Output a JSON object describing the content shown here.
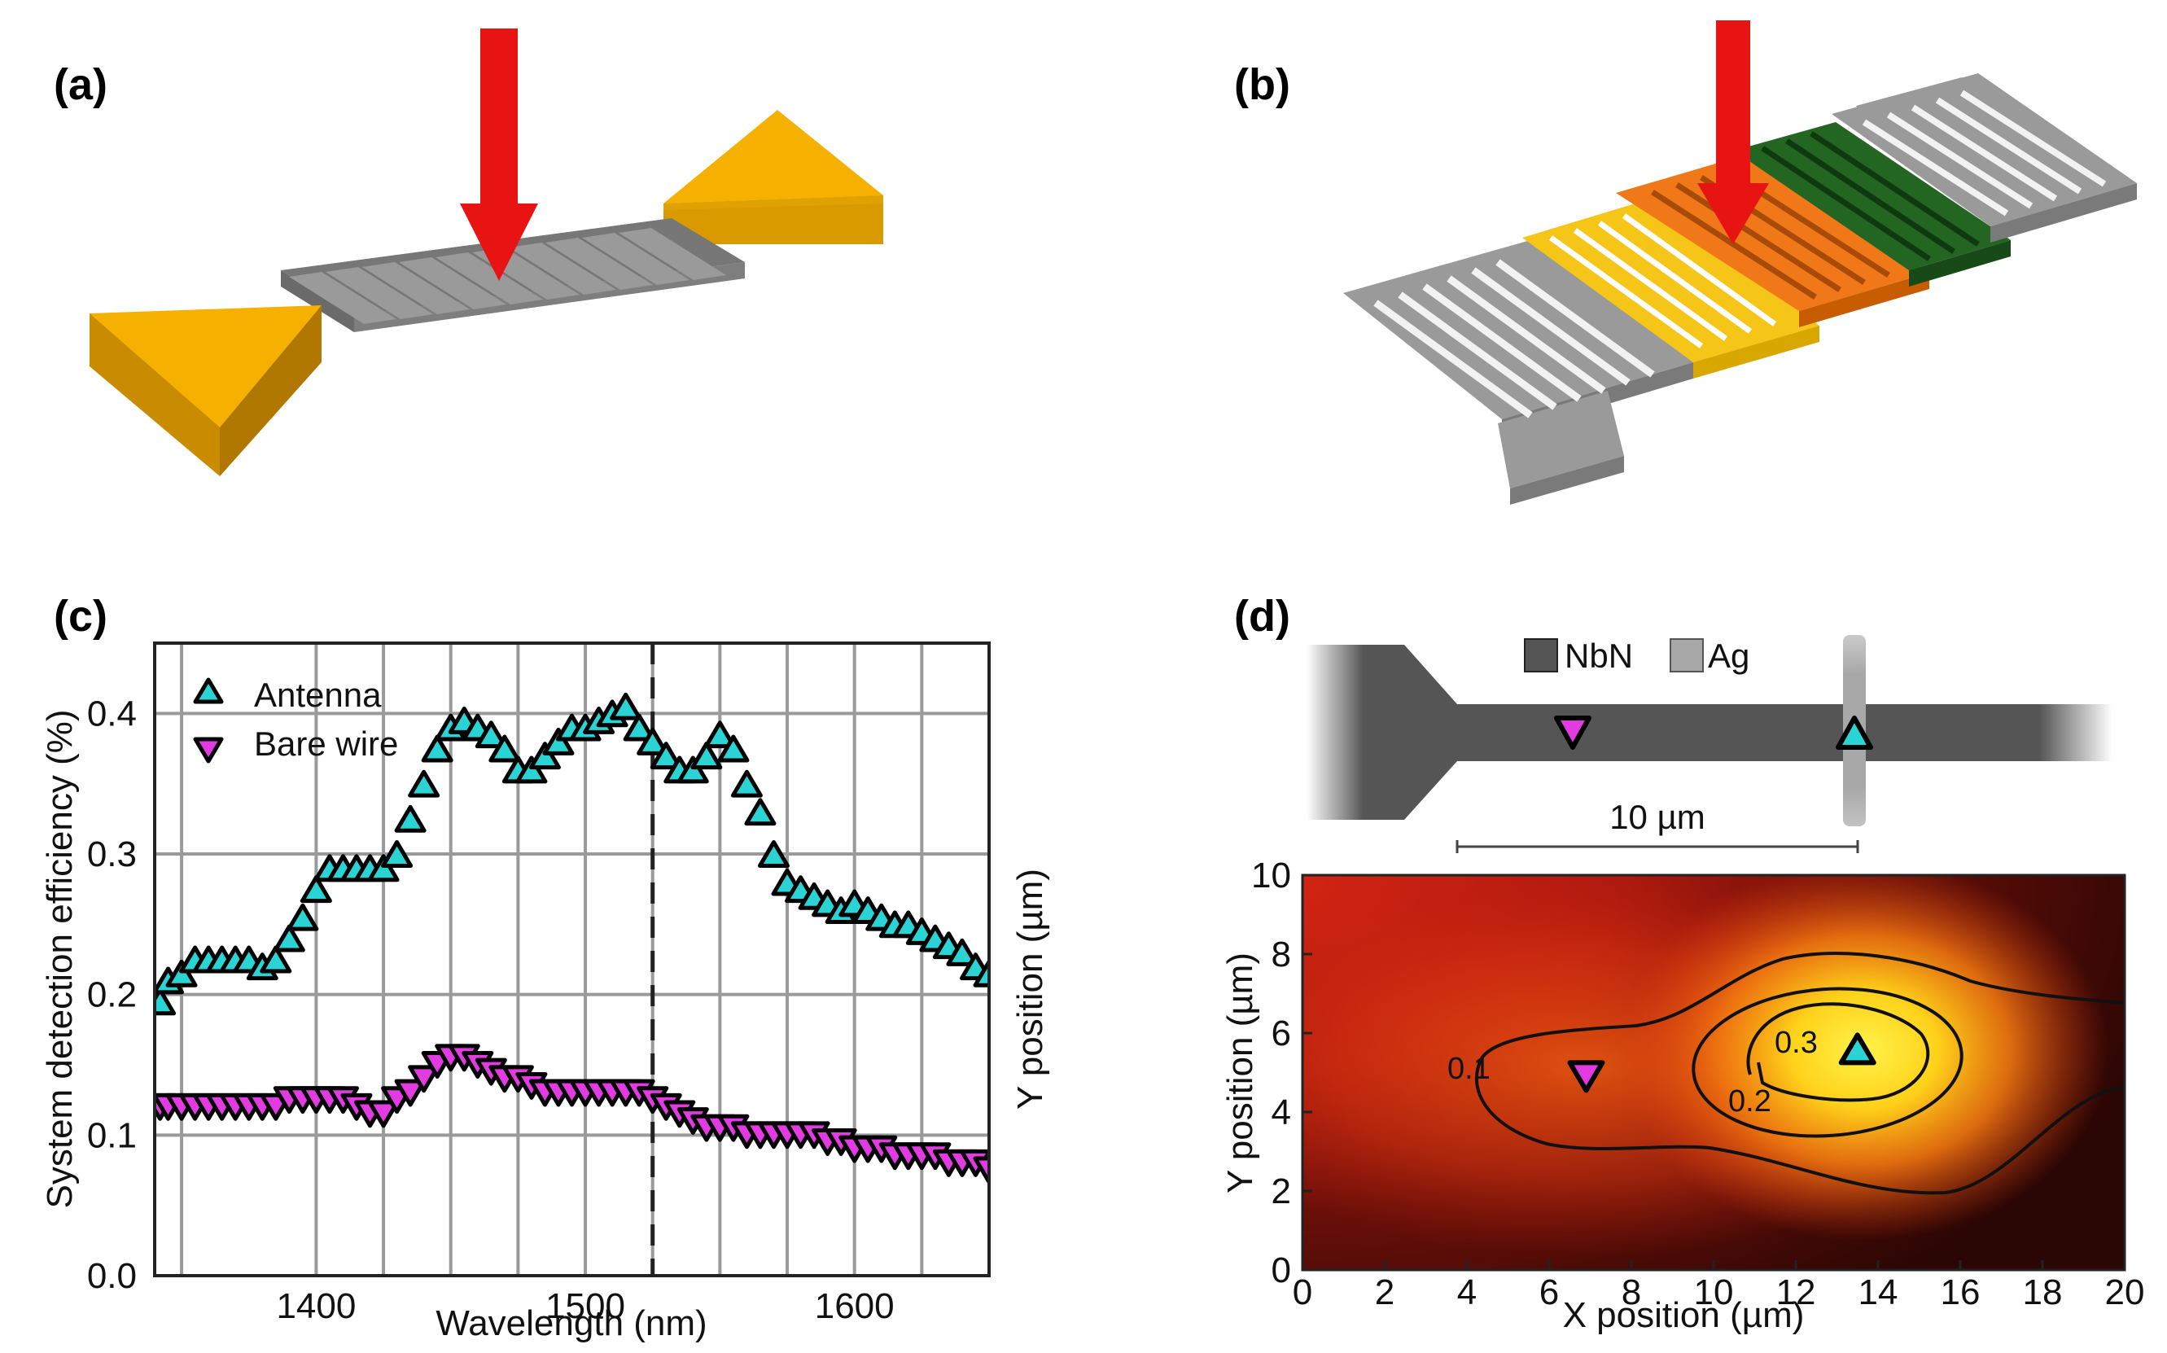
{
  "panels": {
    "a": "(a)",
    "b": "(b)",
    "c": "(c)",
    "d": "(d)"
  },
  "colors": {
    "arrow": "#e81313",
    "wire": "#8c8c8c",
    "gold": "#f5b000",
    "grid": "#9a9a9a",
    "antenna_marker": "#2ad4d4",
    "bare_marker": "#e23be2",
    "nbn": "#555555",
    "ag": "#a8a8a8"
  },
  "chart_data": [
    {
      "type": "scatter",
      "panel": "(c)",
      "xlabel": "Wavelength (nm)",
      "ylabel": "System detection efficiency (%)",
      "right_label": "Y position (µm)",
      "xlim": [
        1340,
        1650
      ],
      "ylim": [
        0.0,
        0.45
      ],
      "xticks": [
        1400,
        1500,
        1600
      ],
      "xtick_labels": [
        "1400",
        "1500",
        "1600"
      ],
      "yticks": [
        0.0,
        0.1,
        0.2,
        0.3,
        0.4
      ],
      "ytick_labels": [
        "0.0",
        "0.1",
        "0.2",
        "0.3",
        "0.4"
      ],
      "x_gridlines": [
        1350,
        1400,
        1425,
        1450,
        1475,
        1500,
        1525,
        1550,
        1575,
        1600,
        1625
      ],
      "y_gridlines": [
        0.1,
        0.2,
        0.3,
        0.4
      ],
      "dashed_line_x": 1525,
      "legend": [
        "Antenna",
        "Bare wire"
      ],
      "series": [
        {
          "name": "Antenna",
          "x": [
            1342,
            1345,
            1350,
            1355,
            1360,
            1365,
            1370,
            1375,
            1380,
            1385,
            1390,
            1395,
            1400,
            1405,
            1410,
            1415,
            1420,
            1425,
            1430,
            1435,
            1440,
            1445,
            1450,
            1455,
            1460,
            1465,
            1470,
            1475,
            1480,
            1485,
            1490,
            1495,
            1500,
            1505,
            1510,
            1515,
            1520,
            1525,
            1530,
            1535,
            1540,
            1545,
            1550,
            1555,
            1560,
            1565,
            1570,
            1575,
            1580,
            1585,
            1590,
            1595,
            1600,
            1605,
            1610,
            1615,
            1620,
            1625,
            1630,
            1635,
            1640,
            1645,
            1650
          ],
          "y": [
            0.195,
            0.21,
            0.215,
            0.225,
            0.225,
            0.225,
            0.225,
            0.225,
            0.22,
            0.225,
            0.24,
            0.255,
            0.275,
            0.29,
            0.29,
            0.29,
            0.29,
            0.29,
            0.3,
            0.325,
            0.35,
            0.375,
            0.39,
            0.395,
            0.39,
            0.385,
            0.375,
            0.36,
            0.36,
            0.37,
            0.38,
            0.39,
            0.39,
            0.395,
            0.4,
            0.405,
            0.39,
            0.38,
            0.37,
            0.36,
            0.36,
            0.37,
            0.385,
            0.375,
            0.35,
            0.33,
            0.3,
            0.28,
            0.275,
            0.27,
            0.265,
            0.26,
            0.265,
            0.26,
            0.255,
            0.25,
            0.25,
            0.245,
            0.24,
            0.235,
            0.23,
            0.22,
            0.215
          ]
        },
        {
          "name": "Bare wire",
          "x": [
            1342,
            1345,
            1350,
            1355,
            1360,
            1365,
            1370,
            1375,
            1380,
            1385,
            1390,
            1395,
            1400,
            1405,
            1410,
            1415,
            1420,
            1425,
            1430,
            1435,
            1440,
            1445,
            1450,
            1455,
            1460,
            1465,
            1470,
            1475,
            1480,
            1485,
            1490,
            1495,
            1500,
            1505,
            1510,
            1515,
            1520,
            1525,
            1530,
            1535,
            1540,
            1545,
            1550,
            1555,
            1560,
            1565,
            1570,
            1575,
            1580,
            1585,
            1590,
            1595,
            1600,
            1605,
            1610,
            1615,
            1620,
            1625,
            1630,
            1635,
            1640,
            1645,
            1650
          ],
          "y": [
            0.12,
            0.12,
            0.12,
            0.12,
            0.12,
            0.12,
            0.12,
            0.12,
            0.12,
            0.12,
            0.125,
            0.125,
            0.125,
            0.125,
            0.125,
            0.12,
            0.115,
            0.115,
            0.125,
            0.13,
            0.14,
            0.15,
            0.155,
            0.155,
            0.15,
            0.145,
            0.14,
            0.14,
            0.135,
            0.13,
            0.13,
            0.13,
            0.13,
            0.13,
            0.13,
            0.13,
            0.13,
            0.125,
            0.12,
            0.115,
            0.11,
            0.105,
            0.105,
            0.105,
            0.1,
            0.1,
            0.1,
            0.1,
            0.1,
            0.1,
            0.095,
            0.095,
            0.09,
            0.09,
            0.09,
            0.085,
            0.085,
            0.085,
            0.085,
            0.08,
            0.08,
            0.08,
            0.075
          ]
        }
      ]
    },
    {
      "type": "heatmap",
      "panel": "(d)",
      "xlabel": "X position (µm)",
      "ylabel": "Y position (µm)",
      "xlim": [
        0,
        20
      ],
      "ylim": [
        0,
        10
      ],
      "xticks": [
        0,
        2,
        4,
        6,
        8,
        10,
        12,
        14,
        16,
        18,
        20
      ],
      "xtick_labels": [
        "0",
        "2",
        "4",
        "6",
        "8",
        "10",
        "12",
        "14",
        "16",
        "18",
        "20"
      ],
      "yticks": [
        0,
        2,
        4,
        6,
        8,
        10
      ],
      "ytick_labels": [
        "0",
        "2",
        "4",
        "6",
        "8",
        "10"
      ],
      "contour_labels": [
        "0.1",
        "0.2",
        "0.3"
      ],
      "bare_marker": {
        "x": 6.9,
        "y": 4.9
      },
      "antenna_marker": {
        "x": 13.5,
        "y": 5.6
      }
    }
  ],
  "schematic_d": {
    "legend_nbn": "NbN",
    "legend_ag": "Ag",
    "scale_label": "10 µm"
  }
}
